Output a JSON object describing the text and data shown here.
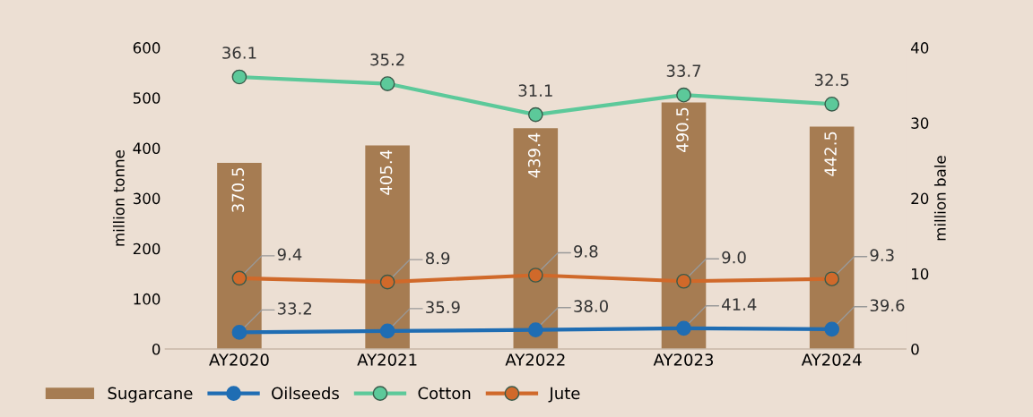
{
  "chart_data": {
    "type": "bar",
    "ylabel": "million tonne",
    "y2label": "million bale",
    "categories": [
      "AY2020",
      "AY2021",
      "AY2022",
      "AY2023",
      "AY2024"
    ],
    "series": [
      {
        "name": "Sugarcane",
        "color": "#a67c52",
        "values": [
          370.5,
          405.4,
          439.4,
          490.5,
          442.5
        ]
      },
      {
        "name": "Oilseeds",
        "type": "line",
        "color": "#1f6db3",
        "values": [
          33.2,
          35.9,
          38.0,
          41.4,
          39.6
        ],
        "value_labels": [
          "33.2",
          "35.9",
          "38.0",
          "41.4",
          "39.6"
        ]
      },
      {
        "name": "Cotton",
        "type": "line",
        "axis": "y2",
        "color": "#5cc99a",
        "values": [
          36.1,
          35.2,
          31.1,
          33.7,
          32.5
        ],
        "value_labels": [
          "36.1",
          "35.2",
          "31.1",
          "33.7",
          "32.5"
        ]
      },
      {
        "name": "Jute",
        "type": "line",
        "axis": "y2",
        "color": "#d0692a",
        "values": [
          9.4,
          8.9,
          9.8,
          9.0,
          9.3
        ],
        "value_labels": [
          "9.4",
          "8.9",
          "9.8",
          "9.0",
          "9.3"
        ]
      }
    ],
    "ylim": [
      0,
      600
    ],
    "yticks": [
      0,
      100,
      200,
      300,
      400,
      500,
      600
    ],
    "y2lim": [
      0,
      40
    ],
    "y2ticks": [
      0,
      10,
      20,
      30,
      40
    ],
    "data_labels": true,
    "legend": "bottom left",
    "marker": "circle",
    "grid": false
  }
}
